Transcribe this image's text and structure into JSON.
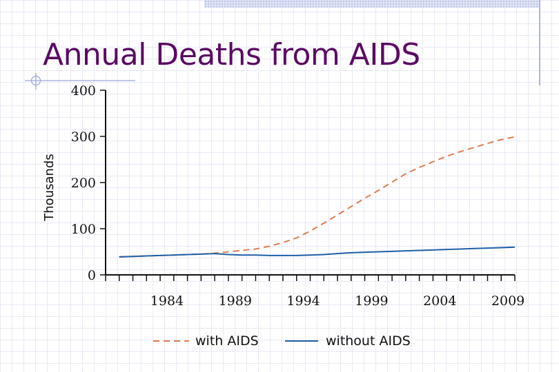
{
  "slide": {
    "title": "Annual Deaths from AIDS"
  },
  "colors": {
    "title": "#5b0a64",
    "with_aids": "#e07b53",
    "without_aids": "#1f5fa8",
    "axis": "#111111",
    "accent_line": "#9aa6d8"
  },
  "chart_data": {
    "type": "line",
    "title": "",
    "xlabel": "",
    "ylabel": "Thousands",
    "xlim": [
      1980,
      2010
    ],
    "ylim": [
      0,
      400
    ],
    "x_ticks": [
      1984,
      1989,
      1994,
      1999,
      2004,
      2009
    ],
    "y_ticks": [
      0,
      100,
      200,
      300,
      400
    ],
    "grid": false,
    "legend_position": "bottom",
    "x": [
      1981,
      1982,
      1983,
      1984,
      1985,
      1986,
      1987,
      1988,
      1989,
      1990,
      1991,
      1992,
      1993,
      1994,
      1995,
      1996,
      1997,
      1998,
      1999,
      2000,
      2001,
      2002,
      2003,
      2004,
      2005,
      2006,
      2007,
      2008,
      2009,
      2010
    ],
    "series": [
      {
        "name": "with AIDS",
        "style": "dashed",
        "color": "#e07b53",
        "values": [
          39,
          40,
          41,
          42,
          43,
          44,
          45,
          47,
          50,
          53,
          56,
          62,
          70,
          80,
          95,
          112,
          130,
          148,
          166,
          183,
          201,
          219,
          233,
          245,
          257,
          267,
          276,
          285,
          293,
          299
        ]
      },
      {
        "name": "without AIDS",
        "style": "solid",
        "color": "#1f5fa8",
        "values": [
          39,
          40,
          41,
          42,
          43,
          44,
          45,
          46,
          44,
          43,
          43,
          42,
          42,
          42,
          43,
          44,
          46,
          48,
          49,
          50,
          51,
          52,
          53,
          54,
          55,
          56,
          57,
          58,
          59,
          60
        ]
      }
    ]
  }
}
